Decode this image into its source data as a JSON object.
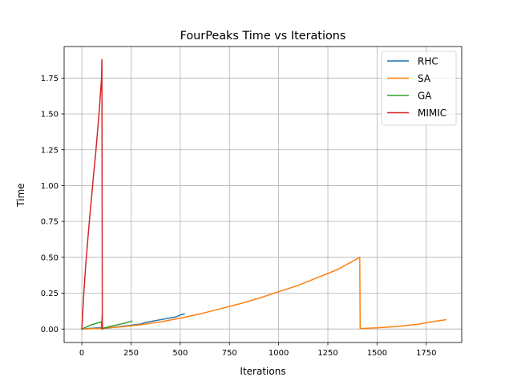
{
  "chart_data": {
    "type": "line",
    "title": "FourPeaks Time vs Iterations",
    "xlabel": "Iterations",
    "ylabel": "Time",
    "xlim": [
      -90,
      1930
    ],
    "ylim": [
      -0.094,
      1.97
    ],
    "xticks": [
      0,
      250,
      500,
      750,
      1000,
      1250,
      1500,
      1750
    ],
    "xtick_labels": [
      "0",
      "250",
      "500",
      "750",
      "1000",
      "1250",
      "1500",
      "1750"
    ],
    "yticks": [
      0.0,
      0.25,
      0.5,
      0.75,
      1.0,
      1.25,
      1.5,
      1.75
    ],
    "ytick_labels": [
      "0.00",
      "0.25",
      "0.50",
      "0.75",
      "1.00",
      "1.25",
      "1.50",
      "1.75"
    ],
    "grid": true,
    "legend_position": "top-right",
    "series": [
      {
        "name": "RHC",
        "color": "#1f77b4",
        "x": [
          0,
          100,
          101,
          200,
          300,
          320,
          400,
          480,
          500,
          520
        ],
        "y": [
          0.0,
          0.01,
          0.002,
          0.018,
          0.035,
          0.045,
          0.065,
          0.085,
          0.098,
          0.105
        ]
      },
      {
        "name": "SA",
        "color": "#ff7f0e",
        "x": [
          0,
          100,
          103,
          106,
          107,
          108,
          200,
          300,
          400,
          500,
          600,
          700,
          800,
          900,
          1000,
          1100,
          1200,
          1300,
          1412,
          1414,
          1500,
          1600,
          1700,
          1800,
          1850
        ],
        "y": [
          0.0,
          0.005,
          0.095,
          0.0,
          0.005,
          0.005,
          0.015,
          0.03,
          0.05,
          0.075,
          0.105,
          0.14,
          0.175,
          0.215,
          0.26,
          0.305,
          0.36,
          0.415,
          0.5,
          0.003,
          0.008,
          0.018,
          0.032,
          0.055,
          0.065
        ]
      },
      {
        "name": "GA",
        "color": "#2ca02c",
        "x": [
          0,
          50,
          100,
          101,
          150,
          200,
          255
        ],
        "y": [
          0.0,
          0.03,
          0.05,
          0.003,
          0.02,
          0.035,
          0.055
        ]
      },
      {
        "name": "MIMIC",
        "color": "#d62728",
        "x": [
          0,
          10,
          20,
          30,
          40,
          50,
          60,
          70,
          80,
          90,
          100,
          102,
          104
        ],
        "y": [
          0.0,
          0.25,
          0.45,
          0.62,
          0.78,
          0.93,
          1.08,
          1.22,
          1.38,
          1.55,
          1.75,
          1.88,
          0.0
        ]
      }
    ]
  }
}
